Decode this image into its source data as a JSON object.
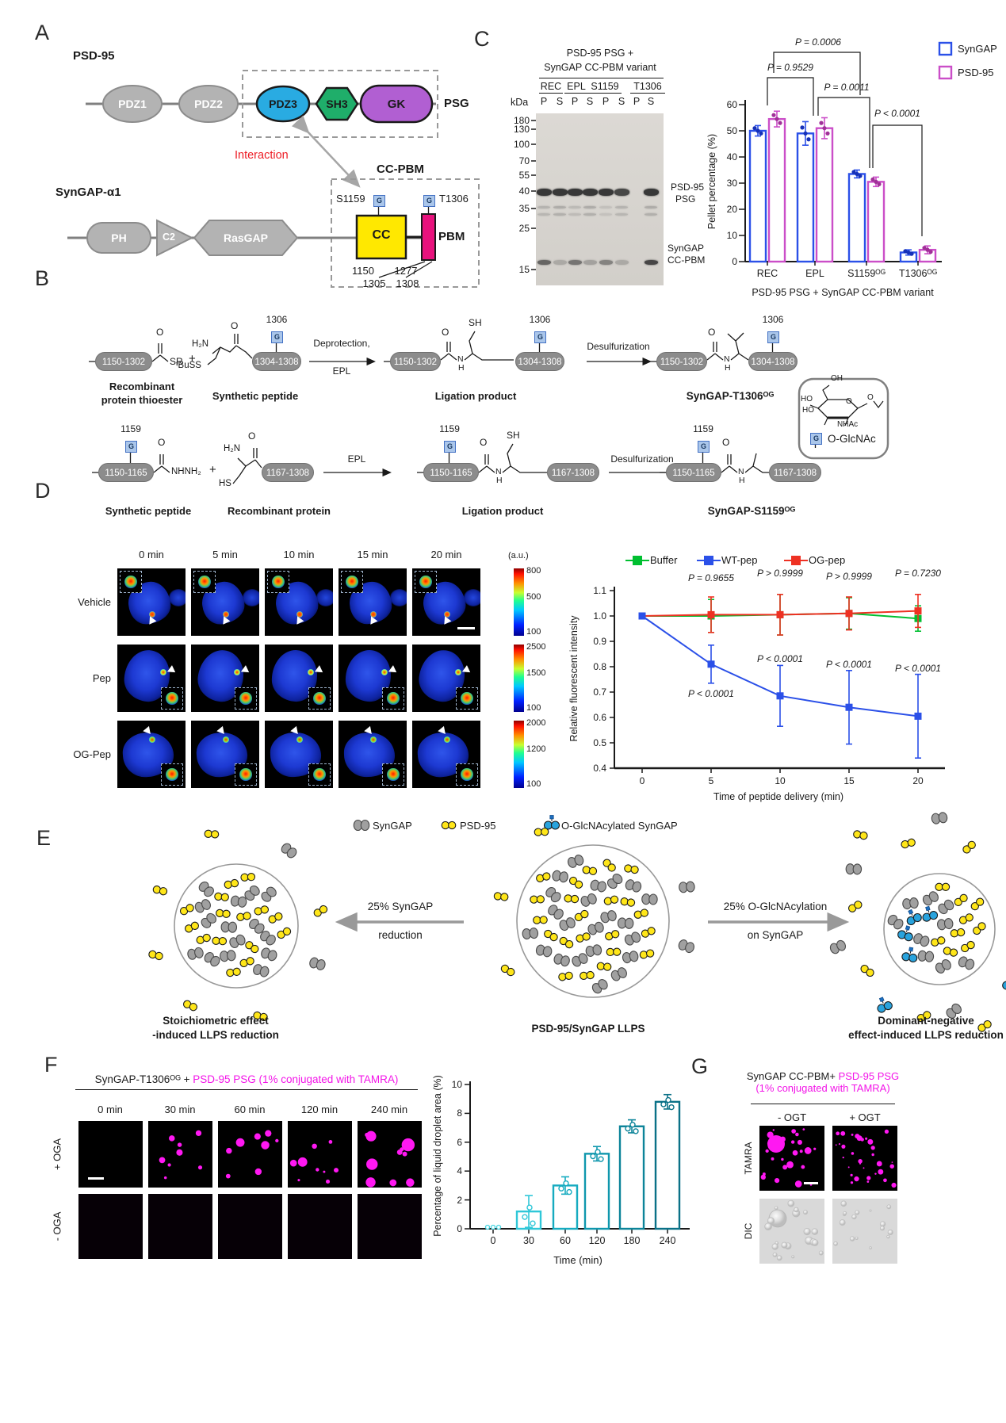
{
  "colors": {
    "syngap_blue": "#2b50e8",
    "psd95_magenta": "#cb4ec8",
    "buffer_green": "#00bf30",
    "ogpep_red": "#ee3123",
    "tamra_magenta": "#ff16f0",
    "pdz3_blue": "#29abe2",
    "sh3_green": "#1fae6a",
    "gk_purple": "#b15fd2",
    "cc_yellow": "#ffe800",
    "pbm_pink": "#e8127d",
    "domain_gray": "#b3b3b3",
    "interaction_red": "#ed1c24",
    "glcnac_blue": "#aac6ea",
    "teal_bars": [
      "#45d5e2",
      "#2fc7d8",
      "#16abc0",
      "#0f97ad",
      "#0c8499",
      "#0a7187"
    ]
  },
  "p": {
    "a": {
      "label": "A",
      "psd95": "PSD-95",
      "pdz1": "PDZ1",
      "pdz2": "PDZ2",
      "pdz3": "PDZ3",
      "sh3": "SH3",
      "gk": "GK",
      "psg": "PSG",
      "interaction": "Interaction",
      "syngap": "SynGAP-α1",
      "ph": "PH",
      "c2": "C2",
      "rasgap": "RasGAP",
      "ccpbm": "CC-PBM",
      "s1159": "S1159",
      "t1306": "T1306",
      "cc": "CC",
      "pbm": "PBM",
      "g": "G",
      "n1150": "1150",
      "n1277": "1277",
      "n1305": "1305",
      "n1308": "1308"
    },
    "b": {
      "label": "B",
      "r1": {
        "box1": "1150-1302",
        "box2": "1304-1308",
        "o": "O",
        "sr": "SR",
        "plus": "+",
        "h2n": "H₂N",
        "n1306": "1306",
        "tbuss": "ᵗBuSS",
        "sh": "SH",
        "n": "N",
        "h": "H",
        "name1a": "Recombinant",
        "name1b": "protein thioester",
        "name2": "Synthetic peptide",
        "arrow1a": "Deprotection,",
        "arrow1b": "EPL",
        "name3": "Ligation product",
        "arrow2": "Desulfurization",
        "name4": "SynGAP-T1306ᴼᴳ"
      },
      "r2": {
        "box1": "1150-1165",
        "box2": "1167-1308",
        "o": "O",
        "nhnh2": "NHNH₂",
        "plus": "+",
        "h2n": "H₂N",
        "hs": "HS",
        "n1159": "1159",
        "sh": "SH",
        "n": "N",
        "h": "H",
        "name1": "Synthetic peptide",
        "name2": "Recombinant protein",
        "arrow1": "EPL",
        "name3": "Ligation product",
        "arrow2": "Desulfurization",
        "name4": "SynGAP-S1159ᴼᴳ"
      },
      "glc": {
        "oh": "OH",
        "ho1": "HO",
        "ho2": "HO",
        "nhac": "NHAc",
        "o": "O",
        "olink": "O",
        "g": "G",
        "label": "O-GlcNAc"
      }
    },
    "c": {
      "label": "C",
      "gel": {
        "header1": "PSD-95 PSG +",
        "header2": "SynGAP CC-PBM variant",
        "kda": "kDa",
        "groups": [
          "REC",
          "EPL",
          "S1159",
          "T1306"
        ],
        "lanes": [
          "P",
          "S",
          "P",
          "S",
          "P",
          "S",
          "P",
          "S"
        ],
        "ladder": [
          "180",
          "130",
          "100",
          "70",
          "55",
          "40",
          "35",
          "25",
          "15"
        ],
        "band_psg": [
          1,
          1,
          1,
          1,
          1,
          0.9,
          0,
          1
        ],
        "band_faint": [
          0.5,
          0.6,
          0.4,
          0.6,
          0.3,
          0.5,
          0,
          0.6
        ],
        "band_ccpbm": [
          0.7,
          0.25,
          0.6,
          0.3,
          0.5,
          0.25,
          0,
          0.9
        ],
        "band1a": "PSD-95",
        "band1b": "PSG",
        "band2a": "SynGAP",
        "band2b": "CC-PBM"
      }
    },
    "d": {
      "label": "D",
      "cols": [
        "0 min",
        "5 min",
        "10 min",
        "15 min",
        "20 min"
      ],
      "rows": [
        "Vehicle",
        "Pep",
        "OG-Pep"
      ],
      "au": "(a.u.)",
      "scales": [
        [
          "800",
          "500",
          "100"
        ],
        [
          "2500",
          "1500",
          "100"
        ],
        [
          "2000",
          "1200",
          "100"
        ]
      ]
    },
    "e": {
      "label": "E",
      "legend": [
        "SynGAP",
        "PSD-95",
        "O-GlcNAcylated SynGAP"
      ],
      "arrow_left": [
        "25% SynGAP",
        "reduction"
      ],
      "arrow_right": [
        "25% O-GlcNAcylation",
        "on SynGAP"
      ],
      "cap_left1": "Stoichiometric effect",
      "cap_left2": "-induced LLPS reduction",
      "cap_mid": "PSD-95/SynGAP LLPS",
      "cap_right1": "Dominant-negative",
      "cap_right2": "effect-induced LLPS reduction"
    },
    "f": {
      "label": "F",
      "title_black": "SynGAP-T1306ᴼᴳ + ",
      "title_magenta": "PSD-95 PSG (1% conjugated with TAMRA)",
      "cols": [
        "0 min",
        "30 min",
        "60 min",
        "120 min",
        "240 min"
      ],
      "rows": [
        "+ OGA",
        "- OGA"
      ]
    },
    "g": {
      "label": "G",
      "t1_black": "SynGAP CC-PBM+ ",
      "t1_magenta": "PSD-95 PSG",
      "t2": "(1% conjugated with TAMRA)",
      "cols": [
        "- OGT",
        "+ OGT"
      ],
      "rows": [
        "TAMRA",
        "DIC"
      ]
    }
  },
  "chart_data": [
    {
      "id": "pellet",
      "type": "bar",
      "ylabel": "Pellet percentage (%)",
      "xlabel": "PSD-95 PSG + SynGAP CC-PBM variant",
      "categories": [
        "REC",
        "EPL",
        "S1159ᴼᴳ",
        "T1306ᴼᴳ"
      ],
      "ylim": [
        0,
        60
      ],
      "yticks": [
        0,
        10,
        20,
        30,
        40,
        50,
        60
      ],
      "legend_position": "top-right",
      "grid": false,
      "series": [
        {
          "name": "SynGAP",
          "color": "#2b50e8",
          "values": [
            50,
            49,
            33.5,
            3.5
          ],
          "errors": [
            2,
            4.5,
            1.5,
            1
          ]
        },
        {
          "name": "PSD-95",
          "color": "#cb4ec8",
          "values": [
            54.5,
            51,
            30.5,
            4.5
          ],
          "errors": [
            3,
            4,
            1.8,
            1.5
          ]
        }
      ],
      "pvalues": [
        "P = 0.0006",
        "P = 0.9529",
        "P = 0.0011",
        "P < 0.0001"
      ]
    },
    {
      "id": "fluor",
      "type": "line",
      "ylabel": "Relative fluorescent intensity",
      "xlabel": "Time of peptide delivery (min)",
      "x": [
        0,
        5,
        10,
        15,
        20
      ],
      "ylim": [
        0.4,
        1.1
      ],
      "yticks": [
        0.4,
        0.5,
        0.6,
        0.7,
        0.8,
        0.9,
        1.0,
        1.1
      ],
      "grid": false,
      "legend_position": "top",
      "series": [
        {
          "name": "Buffer",
          "color": "#00bf30",
          "values": [
            1.0,
            1.0,
            1.005,
            1.01,
            0.99
          ],
          "errors": [
            0,
            0.065,
            0.08,
            0.062,
            0.05
          ]
        },
        {
          "name": "WT-pep",
          "color": "#2b50e8",
          "values": [
            1.0,
            0.81,
            0.685,
            0.64,
            0.605
          ],
          "errors": [
            0,
            0.075,
            0.12,
            0.145,
            0.165
          ]
        },
        {
          "name": "OG-pep",
          "color": "#ee3123",
          "values": [
            1.0,
            1.005,
            1.005,
            1.01,
            1.02
          ],
          "errors": [
            0,
            0.07,
            0.08,
            0.065,
            0.065
          ]
        }
      ],
      "pvalues_top": [
        "P = 0.9655",
        "P > 0.9999",
        "P > 0.9999",
        "P = 0.7230"
      ],
      "pvalues_bottom": [
        "P < 0.0001",
        "P < 0.0001",
        "P < 0.0001",
        "P < 0.0001"
      ]
    },
    {
      "id": "droplet",
      "type": "bar",
      "ylabel": "Percentage of liquid droplet area (%)",
      "xlabel": "Time (min)",
      "categories": [
        "0",
        "30",
        "60",
        "120",
        "180",
        "240"
      ],
      "ylim": [
        0,
        10
      ],
      "yticks": [
        0,
        2,
        4,
        6,
        8,
        10
      ],
      "grid": false,
      "values": [
        0,
        1.2,
        3.0,
        5.2,
        7.1,
        8.8
      ],
      "errors": [
        0.05,
        1.1,
        0.6,
        0.5,
        0.45,
        0.5
      ],
      "colors": [
        "#45d5e2",
        "#2fc7d8",
        "#16abc0",
        "#0f97ad",
        "#0c8499",
        "#0a7187"
      ]
    }
  ]
}
